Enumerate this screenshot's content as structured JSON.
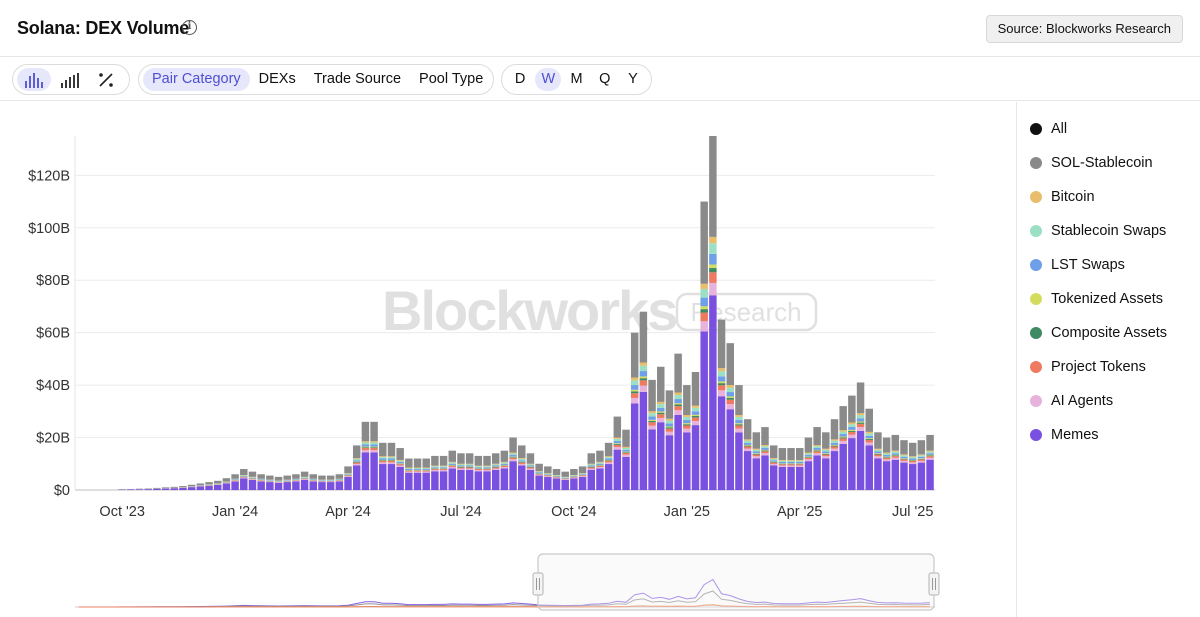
{
  "header": {
    "title": "Solana: DEX Volume",
    "info_icon": "info-circle-icon",
    "source_label": "Source: Blockworks Research"
  },
  "toolbar": {
    "chart_types": [
      {
        "icon": "bar-chart-icon",
        "active": true
      },
      {
        "icon": "stacked-bar-icon",
        "active": false
      },
      {
        "icon": "percent-icon",
        "active": false
      }
    ],
    "breakdowns": [
      {
        "label": "Pair Category",
        "active": true
      },
      {
        "label": "DEXs",
        "active": false
      },
      {
        "label": "Trade Source",
        "active": false
      },
      {
        "label": "Pool Type",
        "active": false
      }
    ],
    "periods": [
      {
        "label": "D",
        "active": false
      },
      {
        "label": "W",
        "active": true
      },
      {
        "label": "M",
        "active": false
      },
      {
        "label": "Q",
        "active": false
      },
      {
        "label": "Y",
        "active": false
      }
    ]
  },
  "watermark": {
    "brand": "Blockworks",
    "tag": "Research"
  },
  "legend": [
    {
      "name": "All",
      "color": "#111111"
    },
    {
      "name": "SOL-Stablecoin",
      "color": "#8a8a8a"
    },
    {
      "name": "Bitcoin",
      "color": "#e8bd6b"
    },
    {
      "name": "Stablecoin Swaps",
      "color": "#9be0c4"
    },
    {
      "name": "LST Swaps",
      "color": "#6f9fe8"
    },
    {
      "name": "Tokenized Assets",
      "color": "#d4dc5f"
    },
    {
      "name": "Composite Assets",
      "color": "#3f8a62"
    },
    {
      "name": "Project Tokens",
      "color": "#ee7a62"
    },
    {
      "name": "AI Agents",
      "color": "#e7b3dd"
    },
    {
      "name": "Memes",
      "color": "#7a50e0"
    }
  ],
  "chart_data": {
    "type": "bar",
    "stacked": true,
    "y_unit": "USD billions",
    "ylim": [
      0,
      135
    ],
    "y_ticks": [
      {
        "value": 0,
        "label": "$0"
      },
      {
        "value": 20,
        "label": "$20B"
      },
      {
        "value": 40,
        "label": "$40B"
      },
      {
        "value": 60,
        "label": "$60B"
      },
      {
        "value": 80,
        "label": "$80B"
      },
      {
        "value": 100,
        "label": "$100B"
      },
      {
        "value": 120,
        "label": "$120B"
      }
    ],
    "x_ticks": [
      {
        "week_index": 5,
        "label": "Oct '23"
      },
      {
        "week_index": 18,
        "label": "Jan '24"
      },
      {
        "week_index": 31,
        "label": "Apr '24"
      },
      {
        "week_index": 44,
        "label": "Jul '24"
      },
      {
        "week_index": 57,
        "label": "Oct '24"
      },
      {
        "week_index": 70,
        "label": "Jan '25"
      },
      {
        "week_index": 83,
        "label": "Apr '25"
      },
      {
        "week_index": 96,
        "label": "Jul '25"
      }
    ],
    "weekly_totals": [
      0,
      0,
      0,
      0,
      0,
      0.3,
      0.4,
      0.5,
      0.6,
      0.8,
      1,
      1.2,
      1.5,
      2,
      2.5,
      3,
      3.5,
      4.5,
      6,
      8,
      7,
      6,
      5.5,
      5,
      5.5,
      6,
      7,
      6,
      5.5,
      5.5,
      6,
      9,
      17,
      26,
      26,
      18,
      18,
      16,
      12,
      12,
      12,
      13,
      13,
      15,
      14,
      14,
      13,
      13,
      14,
      15,
      20,
      17,
      14,
      10,
      9,
      8,
      7,
      8,
      9,
      14,
      15,
      18,
      28,
      23,
      60,
      68,
      42,
      47,
      38,
      52,
      40,
      45,
      110,
      135,
      65,
      56,
      40,
      27,
      22,
      24,
      17,
      16,
      16,
      16,
      20,
      24,
      22,
      27,
      32,
      36,
      41,
      31,
      22,
      20,
      21,
      19,
      18,
      19,
      21
    ],
    "memes_share": 0.55,
    "preview_label": "range-navigator"
  }
}
